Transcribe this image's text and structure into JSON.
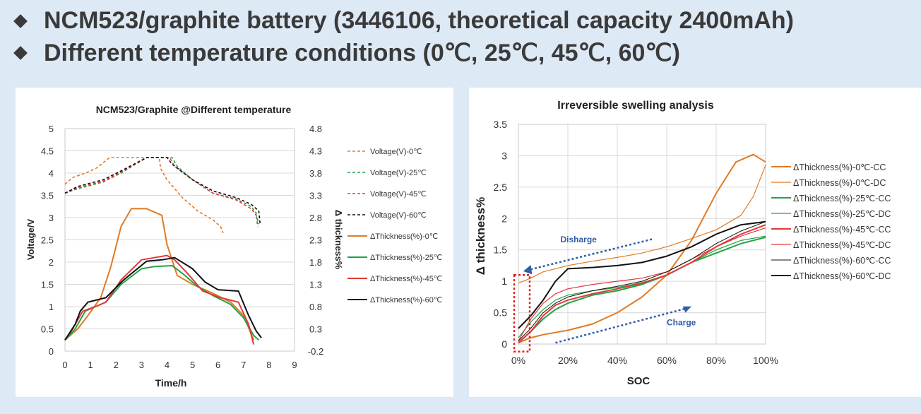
{
  "header": {
    "line1": "NCM523/graphite battery (3446106, theoretical capacity 2400mAh)",
    "line2": "Different temperature conditions (0℃, 25℃, 45℃, 60℃)"
  },
  "chart_data": [
    {
      "type": "line",
      "title": "NCM523/Graphite @Different temperature",
      "xlabel": "Time/h",
      "ylabel": "Voltage/V",
      "y2label": "Δ thickness%",
      "xlim": [
        0,
        9
      ],
      "ylim": [
        0,
        5
      ],
      "y2lim": [
        -0.2,
        4.8
      ],
      "xticks": [
        "0",
        "1",
        "2",
        "3",
        "4",
        "5",
        "6",
        "7",
        "8",
        "9"
      ],
      "yticks": [
        "0",
        "0.5",
        "1",
        "1.5",
        "2",
        "2.5",
        "3",
        "3.5",
        "4",
        "4.5",
        "5"
      ],
      "y2ticks": [
        "-0.2",
        "0.3",
        "0.8",
        "1.3",
        "1.8",
        "2.3",
        "2.8",
        "3.3",
        "3.8",
        "4.3",
        "4.8"
      ],
      "grid": "horizontal",
      "legend_position": "right",
      "series": [
        {
          "name": "Voltage(V)-0℃",
          "axis": "left",
          "style": "dashed",
          "color": "#e07b24",
          "points": [
            [
              0,
              3.75
            ],
            [
              0.3,
              3.9
            ],
            [
              0.8,
              4.0
            ],
            [
              1.2,
              4.1
            ],
            [
              1.6,
              4.28
            ],
            [
              1.75,
              4.35
            ],
            [
              2.5,
              4.35
            ],
            [
              3.7,
              4.35
            ],
            [
              3.75,
              4.1
            ],
            [
              4.0,
              3.85
            ],
            [
              4.6,
              3.45
            ],
            [
              5.2,
              3.15
            ],
            [
              5.8,
              2.95
            ],
            [
              6.1,
              2.8
            ],
            [
              6.2,
              2.65
            ]
          ]
        },
        {
          "name": "Voltage(V)-25℃",
          "axis": "left",
          "style": "dashed",
          "color": "#22a347",
          "points": [
            [
              0,
              3.55
            ],
            [
              0.5,
              3.65
            ],
            [
              1.5,
              3.8
            ],
            [
              2.2,
              4.0
            ],
            [
              3.2,
              4.35
            ],
            [
              4.2,
              4.35
            ],
            [
              4.4,
              4.15
            ],
            [
              5.0,
              3.85
            ],
            [
              5.8,
              3.55
            ],
            [
              6.7,
              3.42
            ],
            [
              7.3,
              3.25
            ],
            [
              7.5,
              3.1
            ],
            [
              7.55,
              2.8
            ]
          ]
        },
        {
          "name": "Voltage(V)-45℃",
          "axis": "left",
          "style": "dashed",
          "color": "#e03a3a",
          "points": [
            [
              0,
              3.55
            ],
            [
              0.5,
              3.67
            ],
            [
              1.5,
              3.82
            ],
            [
              2.2,
              4.02
            ],
            [
              3.2,
              4.35
            ],
            [
              4.1,
              4.35
            ],
            [
              4.3,
              4.15
            ],
            [
              5.0,
              3.85
            ],
            [
              5.8,
              3.55
            ],
            [
              6.7,
              3.4
            ],
            [
              7.3,
              3.2
            ],
            [
              7.5,
              3.05
            ],
            [
              7.6,
              2.85
            ]
          ]
        },
        {
          "name": "Voltage(V)-60℃",
          "axis": "left",
          "style": "dashed",
          "color": "#111111",
          "points": [
            [
              0,
              3.55
            ],
            [
              0.5,
              3.7
            ],
            [
              1.5,
              3.85
            ],
            [
              2.2,
              4.05
            ],
            [
              3.2,
              4.35
            ],
            [
              4.0,
              4.35
            ],
            [
              4.2,
              4.2
            ],
            [
              5.0,
              3.85
            ],
            [
              5.8,
              3.6
            ],
            [
              6.7,
              3.45
            ],
            [
              7.3,
              3.3
            ],
            [
              7.6,
              3.15
            ],
            [
              7.65,
              2.85
            ]
          ]
        },
        {
          "name": "ΔThickness(%)-0℃",
          "axis": "right",
          "style": "solid",
          "color": "#e07b24",
          "points": [
            [
              0,
              0.05
            ],
            [
              0.5,
              0.3
            ],
            [
              0.9,
              0.6
            ],
            [
              1.4,
              1.0
            ],
            [
              1.8,
              1.7
            ],
            [
              2.2,
              2.6
            ],
            [
              2.6,
              3.0
            ],
            [
              3.2,
              3.0
            ],
            [
              3.8,
              2.85
            ],
            [
              4.0,
              2.2
            ],
            [
              4.4,
              1.5
            ],
            [
              5.0,
              1.3
            ],
            [
              5.8,
              1.1
            ],
            [
              6.5,
              0.9
            ],
            [
              7.0,
              0.6
            ],
            [
              7.4,
              0.05
            ]
          ]
        },
        {
          "name": "ΔThickness(%)-25℃",
          "axis": "right",
          "style": "solid",
          "color": "#22a347",
          "points": [
            [
              0,
              0.05
            ],
            [
              0.4,
              0.3
            ],
            [
              0.8,
              0.7
            ],
            [
              1.2,
              0.8
            ],
            [
              1.6,
              0.9
            ],
            [
              2.2,
              1.3
            ],
            [
              3.0,
              1.65
            ],
            [
              3.5,
              1.7
            ],
            [
              4.2,
              1.72
            ],
            [
              4.6,
              1.55
            ],
            [
              5.2,
              1.25
            ],
            [
              5.8,
              1.05
            ],
            [
              6.5,
              0.85
            ],
            [
              7.0,
              0.55
            ],
            [
              7.4,
              0.15
            ],
            [
              7.6,
              0.05
            ]
          ]
        },
        {
          "name": "ΔThickness(%)-45℃",
          "axis": "right",
          "style": "solid",
          "color": "#e03a3a",
          "points": [
            [
              0,
              0.05
            ],
            [
              0.3,
              0.3
            ],
            [
              0.7,
              0.7
            ],
            [
              1.2,
              0.8
            ],
            [
              1.6,
              0.9
            ],
            [
              2.2,
              1.4
            ],
            [
              3.0,
              1.85
            ],
            [
              3.5,
              1.9
            ],
            [
              4.0,
              1.95
            ],
            [
              4.3,
              1.85
            ],
            [
              4.8,
              1.55
            ],
            [
              5.4,
              1.15
            ],
            [
              6.1,
              1.0
            ],
            [
              6.8,
              0.9
            ],
            [
              7.2,
              0.4
            ],
            [
              7.4,
              -0.05
            ]
          ]
        },
        {
          "name": "ΔThickness(%)-60℃",
          "axis": "right",
          "style": "solid",
          "color": "#111111",
          "points": [
            [
              0,
              0.05
            ],
            [
              0.4,
              0.4
            ],
            [
              0.6,
              0.7
            ],
            [
              0.9,
              0.9
            ],
            [
              1.6,
              1.0
            ],
            [
              2.3,
              1.4
            ],
            [
              3.2,
              1.82
            ],
            [
              3.8,
              1.85
            ],
            [
              4.3,
              1.9
            ],
            [
              5.0,
              1.65
            ],
            [
              5.5,
              1.35
            ],
            [
              6.0,
              1.18
            ],
            [
              6.8,
              1.15
            ],
            [
              7.2,
              0.6
            ],
            [
              7.5,
              0.25
            ],
            [
              7.7,
              0.1
            ]
          ]
        }
      ]
    },
    {
      "type": "line",
      "title": "Irreversible swelling analysis",
      "xlabel": "SOC",
      "ylabel": "Δ thickness%",
      "xlim": [
        0,
        100
      ],
      "ylim": [
        0,
        3.5
      ],
      "xticks": [
        "0%",
        "20%",
        "40%",
        "60%",
        "80%",
        "100%"
      ],
      "yticks": [
        "0",
        "0.5",
        "1",
        "1.5",
        "2",
        "2.5",
        "3",
        "3.5"
      ],
      "grid": "both",
      "legend_position": "right",
      "annotations": {
        "discharge": "Disharge",
        "charge": "Charge"
      },
      "series": [
        {
          "name": "ΔThickness(%)-0℃-CC",
          "color": "#e07b24",
          "width": 2,
          "points": [
            [
              0,
              0.02
            ],
            [
              5,
              0.1
            ],
            [
              10,
              0.15
            ],
            [
              20,
              0.22
            ],
            [
              30,
              0.32
            ],
            [
              40,
              0.5
            ],
            [
              50,
              0.75
            ],
            [
              60,
              1.1
            ],
            [
              70,
              1.65
            ],
            [
              80,
              2.4
            ],
            [
              88,
              2.9
            ],
            [
              95,
              3.02
            ],
            [
              100,
              2.9
            ]
          ]
        },
        {
          "name": "ΔThickness(%)-0℃-DC",
          "color": "#e07b24",
          "width": 1.2,
          "points": [
            [
              0,
              0.97
            ],
            [
              5,
              1.05
            ],
            [
              10,
              1.15
            ],
            [
              20,
              1.25
            ],
            [
              30,
              1.32
            ],
            [
              40,
              1.38
            ],
            [
              50,
              1.45
            ],
            [
              60,
              1.55
            ],
            [
              70,
              1.68
            ],
            [
              80,
              1.82
            ],
            [
              90,
              2.05
            ],
            [
              95,
              2.35
            ],
            [
              100,
              2.85
            ]
          ]
        },
        {
          "name": "ΔThickness(%)-25℃-CC",
          "color": "#22a347",
          "width": 2,
          "points": [
            [
              0,
              0.02
            ],
            [
              5,
              0.2
            ],
            [
              10,
              0.4
            ],
            [
              15,
              0.55
            ],
            [
              20,
              0.65
            ],
            [
              30,
              0.78
            ],
            [
              40,
              0.85
            ],
            [
              50,
              0.95
            ],
            [
              60,
              1.1
            ],
            [
              70,
              1.3
            ],
            [
              80,
              1.45
            ],
            [
              90,
              1.6
            ],
            [
              100,
              1.7
            ]
          ]
        },
        {
          "name": "ΔThickness(%)-25℃-DC",
          "color": "#22a347",
          "width": 1.2,
          "points": [
            [
              0,
              0.1
            ],
            [
              5,
              0.35
            ],
            [
              10,
              0.55
            ],
            [
              15,
              0.7
            ],
            [
              20,
              0.78
            ],
            [
              30,
              0.85
            ],
            [
              40,
              0.9
            ],
            [
              50,
              0.98
            ],
            [
              60,
              1.1
            ],
            [
              70,
              1.3
            ],
            [
              80,
              1.5
            ],
            [
              90,
              1.65
            ],
            [
              100,
              1.72
            ]
          ]
        },
        {
          "name": "ΔThickness(%)-45℃-CC",
          "color": "#e03a3a",
          "width": 2,
          "points": [
            [
              0,
              0.02
            ],
            [
              5,
              0.2
            ],
            [
              10,
              0.45
            ],
            [
              15,
              0.62
            ],
            [
              20,
              0.7
            ],
            [
              30,
              0.8
            ],
            [
              40,
              0.88
            ],
            [
              50,
              0.97
            ],
            [
              60,
              1.1
            ],
            [
              70,
              1.3
            ],
            [
              80,
              1.55
            ],
            [
              90,
              1.75
            ],
            [
              100,
              1.9
            ]
          ]
        },
        {
          "name": "ΔThickness(%)-45℃-DC",
          "color": "#e03a3a",
          "width": 1.2,
          "points": [
            [
              0,
              0.05
            ],
            [
              5,
              0.4
            ],
            [
              10,
              0.65
            ],
            [
              15,
              0.8
            ],
            [
              20,
              0.88
            ],
            [
              30,
              0.95
            ],
            [
              40,
              1.0
            ],
            [
              50,
              1.05
            ],
            [
              60,
              1.15
            ],
            [
              70,
              1.35
            ],
            [
              80,
              1.55
            ],
            [
              90,
              1.72
            ],
            [
              100,
              1.85
            ]
          ]
        },
        {
          "name": "ΔThickness(%)-60℃-CC",
          "color": "#111111",
          "width": 1,
          "points": [
            [
              0,
              0.05
            ],
            [
              5,
              0.25
            ],
            [
              10,
              0.5
            ],
            [
              15,
              0.65
            ],
            [
              20,
              0.75
            ],
            [
              30,
              0.85
            ],
            [
              40,
              0.92
            ],
            [
              50,
              1.0
            ],
            [
              60,
              1.15
            ],
            [
              70,
              1.35
            ],
            [
              80,
              1.6
            ],
            [
              90,
              1.8
            ],
            [
              100,
              1.95
            ]
          ]
        },
        {
          "name": "ΔThickness(%)-60℃-DC",
          "color": "#111111",
          "width": 2,
          "points": [
            [
              0,
              0.25
            ],
            [
              5,
              0.45
            ],
            [
              10,
              0.7
            ],
            [
              15,
              1.0
            ],
            [
              20,
              1.2
            ],
            [
              30,
              1.22
            ],
            [
              40,
              1.25
            ],
            [
              50,
              1.3
            ],
            [
              60,
              1.4
            ],
            [
              70,
              1.55
            ],
            [
              80,
              1.75
            ],
            [
              90,
              1.9
            ],
            [
              100,
              1.95
            ]
          ]
        }
      ]
    }
  ]
}
